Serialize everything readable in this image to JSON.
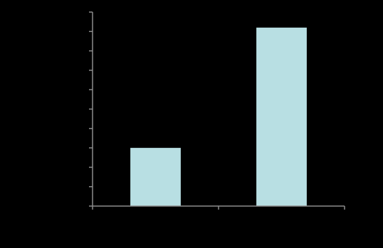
{
  "chart_data": {
    "type": "bar",
    "categories": [
      null,
      null
    ],
    "values": [
      3,
      9.2
    ],
    "color": "#b8dfe3",
    "ylim": [
      0,
      10
    ],
    "yticks": [
      0,
      1,
      2,
      3,
      4,
      5,
      6,
      7,
      8,
      9,
      10
    ],
    "grid": false
  }
}
